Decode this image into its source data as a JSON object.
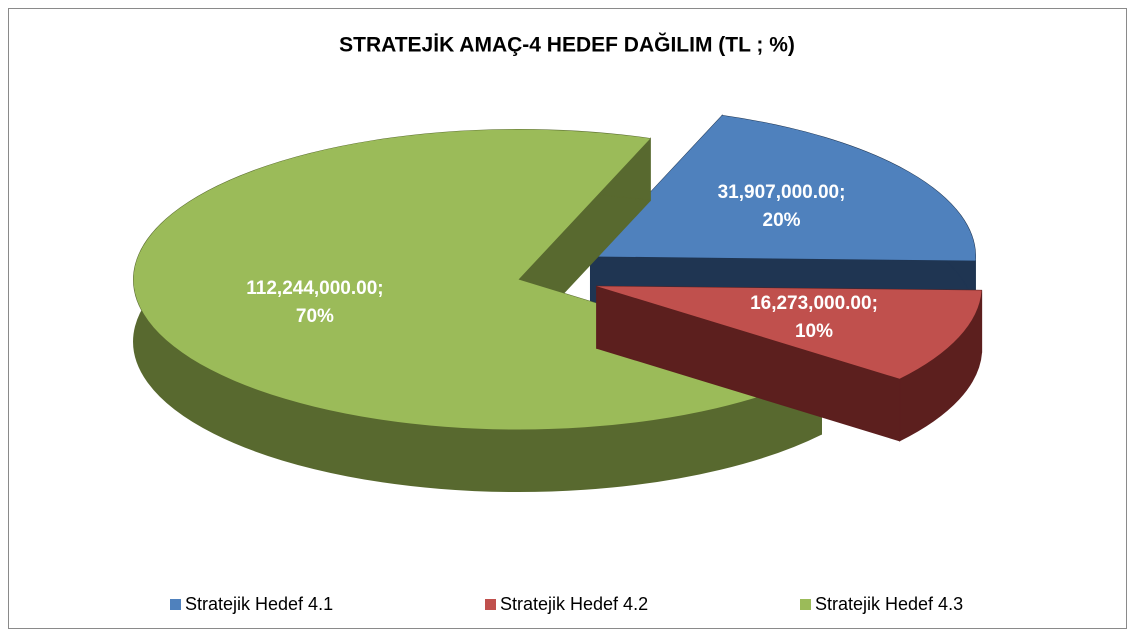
{
  "chart_data": {
    "type": "pie",
    "title": "STRATEJİK AMAÇ-4 HEDEF DAĞILIM (TL ; %)",
    "categories": [
      "Stratejik Hedef 4.1",
      "Stratejik Hedef 4.2",
      "Stratejik Hedef 4.3"
    ],
    "values": [
      31907000,
      16273000,
      112244000
    ],
    "value_labels": [
      "31,907,000.00;",
      "16,273,000.00;",
      "112,244,000.00;"
    ],
    "percent_labels": [
      "20%",
      "10%",
      "70%"
    ],
    "colors": [
      "#4f81bd",
      "#c0504d",
      "#9bbb59"
    ],
    "side_colors": [
      "#1f3552",
      "#5c1f1e",
      "#58692f"
    ],
    "legend": "bottom"
  }
}
